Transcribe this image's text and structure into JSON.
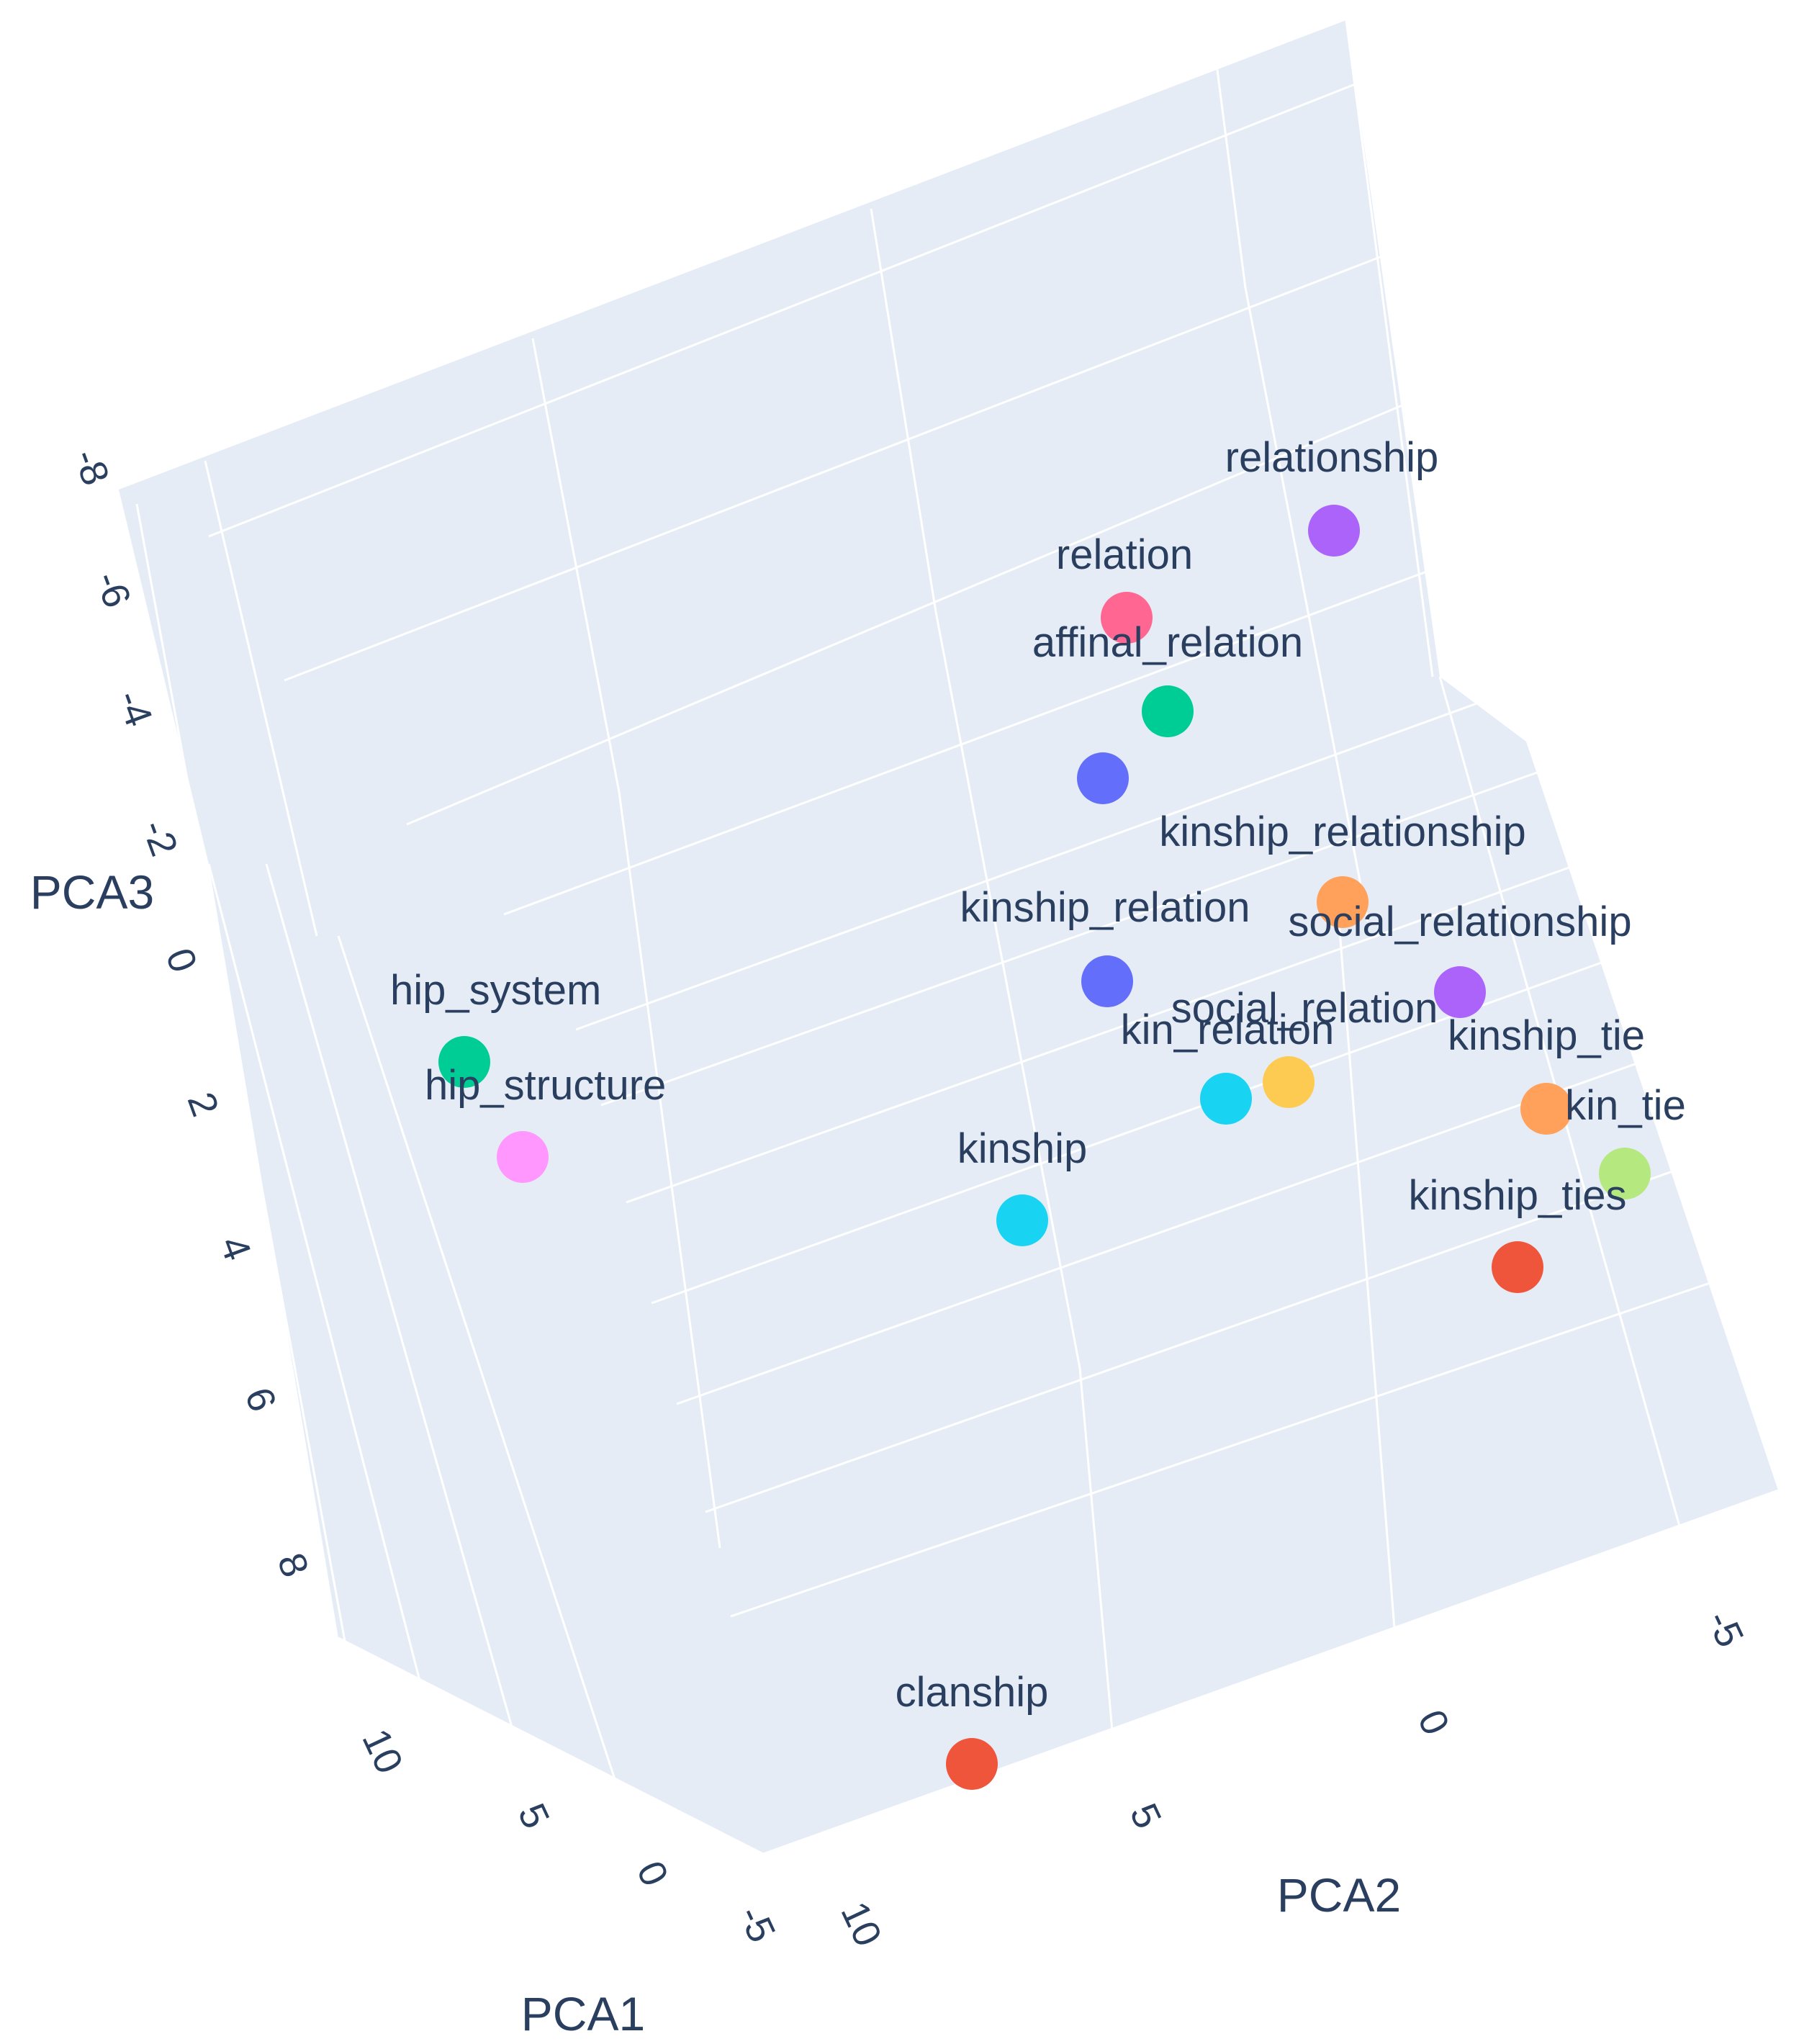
{
  "chart_data": {
    "type": "scatter",
    "title": "",
    "axes": {
      "x": {
        "title": "PCA1",
        "ticks": [
          "10",
          "5",
          "0",
          "-5"
        ]
      },
      "y": {
        "title": "PCA2",
        "ticks": [
          "10",
          "5",
          "0",
          "-5"
        ]
      },
      "z": {
        "title": "PCA3",
        "ticks": [
          "-8",
          "-6",
          "-4",
          "-2",
          "0",
          "2",
          "4",
          "6",
          "8"
        ]
      }
    },
    "points": [
      {
        "label": "relationship",
        "color": "#ab63fa"
      },
      {
        "label": "relation",
        "color": "#ff6692"
      },
      {
        "label": "affinal_relation",
        "color": "#00cc96"
      },
      {
        "label": "",
        "color": "#636efa"
      },
      {
        "label": "kinship_relationship",
        "color": "#ffa15a"
      },
      {
        "label": "kinship_relation",
        "color": "#636efa"
      },
      {
        "label": "social_relationship",
        "color": "#ab63fa"
      },
      {
        "label": "social_relation",
        "color": "#fecb52"
      },
      {
        "label": "kin_relation",
        "color": "#19d3f3"
      },
      {
        "label": "kinship_tie",
        "color": "#ffa15a"
      },
      {
        "label": "kin_tie",
        "color": "#b6e880"
      },
      {
        "label": "kinship_ties",
        "color": "#ef553b"
      },
      {
        "label": "kinship",
        "color": "#19d3f3"
      },
      {
        "label": "hip_system",
        "color": "#00cc96"
      },
      {
        "label": "hip_structure",
        "color": "#ff97ff"
      },
      {
        "label": "clanship",
        "color": "#ef553b"
      }
    ]
  }
}
